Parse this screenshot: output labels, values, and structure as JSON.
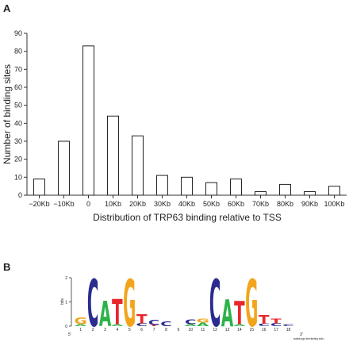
{
  "panel_a_label": "A",
  "panel_b_label": "B",
  "chart_data": {
    "type": "bar",
    "title": "",
    "xlabel": "Distribution of TRP63 binding relative to TSS",
    "ylabel": "Number of binding sites",
    "categories": [
      "−20Kb",
      "−10Kb",
      "0",
      "10Kb",
      "20Kb",
      "30Kb",
      "40Kb",
      "50Kb",
      "60Kb",
      "70Kb",
      "80Kb",
      "90Kb",
      "100Kb"
    ],
    "values": [
      9,
      30,
      83,
      44,
      33,
      11,
      10,
      7,
      9,
      2,
      6,
      2,
      5
    ],
    "ylim": [
      0,
      90
    ],
    "yticks": [
      0,
      10,
      20,
      30,
      40,
      50,
      60,
      70,
      80,
      90
    ],
    "grid": false
  },
  "logo": {
    "ylabel": "bits",
    "yticks": [
      "0",
      "1",
      "2"
    ],
    "start_label": "5'",
    "end_label": "3'",
    "credit": "weblogo.berkeley.edu",
    "positions": [
      "1",
      "2",
      "3",
      "4",
      "5",
      "6",
      "7",
      "8",
      "9",
      "10",
      "11",
      "12",
      "13",
      "14",
      "15",
      "16",
      "17",
      "18"
    ],
    "colors": {
      "A": "#2db24a",
      "C": "#2b2c8f",
      "G": "#f2a51c",
      "T": "#e8262a"
    },
    "stacks": [
      [
        {
          "l": "A",
          "h": 0.08
        },
        {
          "l": "G",
          "h": 0.28
        }
      ],
      [
        {
          "l": "C",
          "h": 1.95
        }
      ],
      [
        {
          "l": "A",
          "h": 1.05
        }
      ],
      [
        {
          "l": "A",
          "h": 0.08
        },
        {
          "l": "T",
          "h": 1.05
        }
      ],
      [
        {
          "l": "G",
          "h": 1.95
        }
      ],
      [
        {
          "l": "C",
          "h": 0.12
        },
        {
          "l": "T",
          "h": 0.38
        }
      ],
      [
        {
          "l": "T",
          "h": 0.05
        },
        {
          "l": "C",
          "h": 0.22
        }
      ],
      [
        {
          "l": "C",
          "h": 0.18
        }
      ],
      [],
      [
        {
          "l": "A",
          "h": 0.08
        },
        {
          "l": "C",
          "h": 0.18
        }
      ],
      [
        {
          "l": "A",
          "h": 0.14
        },
        {
          "l": "G",
          "h": 0.16
        }
      ],
      [
        {
          "l": "C",
          "h": 1.95
        }
      ],
      [
        {
          "l": "A",
          "h": 1.1
        }
      ],
      [
        {
          "l": "A",
          "h": 0.08
        },
        {
          "l": "T",
          "h": 0.95
        }
      ],
      [
        {
          "l": "G",
          "h": 1.95
        }
      ],
      [
        {
          "l": "C",
          "h": 0.1
        },
        {
          "l": "T",
          "h": 0.36
        }
      ],
      [
        {
          "l": "C",
          "h": 0.12
        },
        {
          "l": "T",
          "h": 0.18
        }
      ],
      [
        {
          "l": "C",
          "h": 0.08
        }
      ]
    ]
  }
}
